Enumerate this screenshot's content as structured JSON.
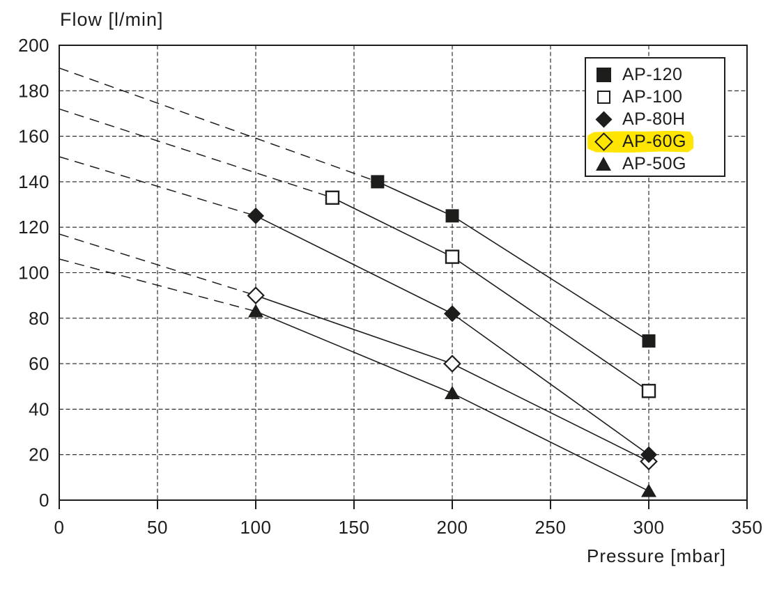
{
  "chart_data": {
    "type": "line",
    "title": "Flow [l/min]",
    "xlabel": "Pressure [mbar]",
    "ylabel": "Flow [l/min]",
    "xlim": [
      0,
      350
    ],
    "ylim": [
      0,
      200
    ],
    "xticks": [
      0,
      50,
      100,
      150,
      200,
      250,
      300,
      350
    ],
    "yticks": [
      0,
      20,
      40,
      60,
      80,
      100,
      120,
      140,
      160,
      180,
      200
    ],
    "grid": true,
    "grid_style": "dashed",
    "legend_position": "top-right",
    "series": [
      {
        "name": "AP-120",
        "marker": "filled-square",
        "points": [
          [
            162,
            140
          ],
          [
            200,
            125
          ],
          [
            300,
            70
          ]
        ],
        "dashed_extrapolation": [
          [
            0,
            190
          ],
          [
            162,
            140
          ]
        ],
        "highlighted": false
      },
      {
        "name": "AP-100",
        "marker": "open-square",
        "points": [
          [
            139,
            133
          ],
          [
            200,
            107
          ],
          [
            300,
            48
          ]
        ],
        "dashed_extrapolation": [
          [
            0,
            172
          ],
          [
            139,
            133
          ]
        ],
        "highlighted": false
      },
      {
        "name": "AP-80H",
        "marker": "filled-diamond",
        "points": [
          [
            100,
            125
          ],
          [
            200,
            82
          ],
          [
            300,
            20
          ]
        ],
        "dashed_extrapolation": [
          [
            0,
            151
          ],
          [
            100,
            125
          ]
        ],
        "highlighted": false
      },
      {
        "name": "AP-60G",
        "marker": "open-diamond",
        "points": [
          [
            100,
            90
          ],
          [
            200,
            60
          ],
          [
            300,
            17
          ]
        ],
        "dashed_extrapolation": [
          [
            0,
            117
          ],
          [
            100,
            90
          ]
        ],
        "highlighted": true
      },
      {
        "name": "AP-50G",
        "marker": "filled-triangle",
        "points": [
          [
            100,
            83
          ],
          [
            200,
            47
          ],
          [
            300,
            4
          ]
        ],
        "dashed_extrapolation": [
          [
            0,
            106
          ],
          [
            100,
            83
          ]
        ],
        "highlighted": false
      }
    ]
  },
  "legend": {
    "highlighted_item": "AP-60G"
  },
  "colors": {
    "ink": "#1d1d1b",
    "highlight_yellow": "#FFE500",
    "background": "#ffffff"
  }
}
